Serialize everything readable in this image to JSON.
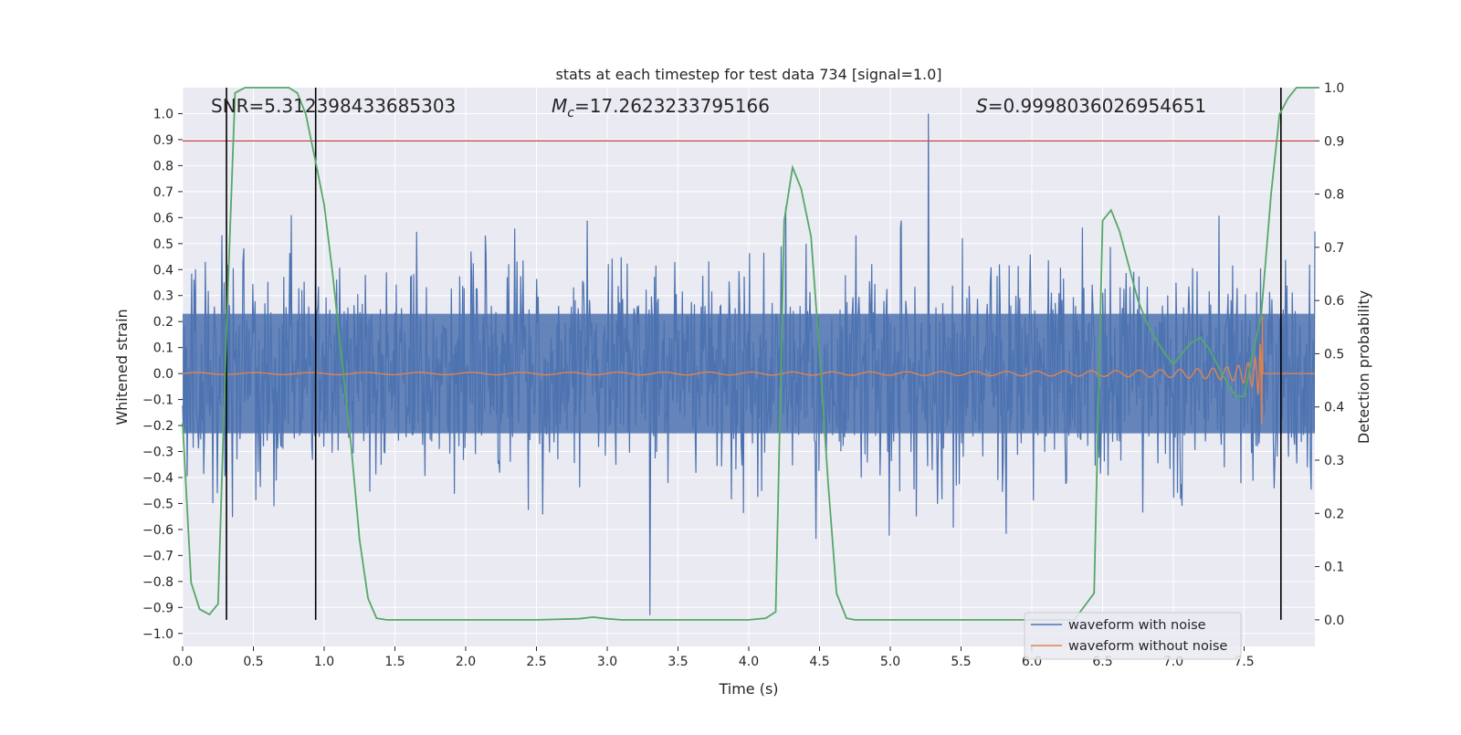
{
  "chart_data": {
    "type": "line",
    "title": "stats at each timestep for test data 734 [signal=1.0]",
    "xlabel": "Time (s)",
    "ylabel": "Whitened strain",
    "y2label": "Detection probability",
    "xlim": [
      0.0,
      8.0
    ],
    "ylim": [
      -1.05,
      1.1
    ],
    "y2lim": [
      -0.05,
      1.0
    ],
    "xticks": [
      0.0,
      0.5,
      1.0,
      1.5,
      2.0,
      2.5,
      3.0,
      3.5,
      4.0,
      4.5,
      5.0,
      5.5,
      6.0,
      6.5,
      7.0,
      7.5
    ],
    "yticks": [
      1.0,
      0.9,
      0.8,
      0.7,
      0.6,
      0.5,
      0.4,
      0.3,
      0.2,
      0.1,
      0.0,
      -0.1,
      -0.2,
      -0.3,
      -0.4,
      -0.5,
      -0.6,
      -0.7,
      -0.8,
      -0.9,
      -1.0
    ],
    "y2ticks": [
      1.0,
      0.9,
      0.8,
      0.7,
      0.6,
      0.5,
      0.4,
      0.3,
      0.2,
      0.1,
      0.0
    ],
    "annotations": {
      "snr": "SNR=5.312398433685303",
      "mc_symbol": "M",
      "mc_sub": "c",
      "mc_value": "=17.2623233795166",
      "s_symbol": "S",
      "s_value": "=0.9998036026954651"
    },
    "threshold": {
      "value": 0.9,
      "axis": "y2",
      "color": "#c44e52"
    },
    "vertical_lines_x": [
      0.31,
      0.94,
      7.76
    ],
    "noise": {
      "min_spike": [
        3.3,
        -0.93
      ],
      "max_spike": [
        5.27,
        1.0
      ],
      "typical_band": 0.38,
      "color": "#4c72b0"
    },
    "chirp": {
      "t_merge": 7.63,
      "max_amp": 0.26,
      "color": "#dd8452"
    },
    "series": [
      {
        "name": "waveform with noise",
        "color": "#4c72b0"
      },
      {
        "name": "waveform without noise",
        "color": "#dd8452"
      },
      {
        "name": "detection probability",
        "color": "#55a868",
        "axis": "y2",
        "x": [
          0.0,
          0.06,
          0.12,
          0.19,
          0.25,
          0.31,
          0.37,
          0.44,
          0.5,
          0.56,
          0.62,
          0.69,
          0.75,
          0.81,
          0.87,
          0.94,
          1.0,
          1.06,
          1.12,
          1.19,
          1.25,
          1.31,
          1.37,
          1.44,
          1.5,
          2.0,
          2.5,
          2.8,
          2.9,
          3.0,
          3.1,
          3.5,
          4.0,
          4.12,
          4.19,
          4.25,
          4.31,
          4.37,
          4.44,
          4.5,
          4.56,
          4.62,
          4.69,
          4.75,
          4.81,
          5.0,
          5.5,
          6.0,
          6.3,
          6.44,
          6.5,
          6.56,
          6.62,
          6.69,
          6.75,
          6.81,
          6.87,
          6.94,
          7.0,
          7.06,
          7.12,
          7.19,
          7.25,
          7.31,
          7.37,
          7.44,
          7.5,
          7.56,
          7.62,
          7.69,
          7.75,
          7.81,
          7.87,
          7.94,
          8.0
        ],
        "values": [
          0.37,
          0.07,
          0.02,
          0.01,
          0.03,
          0.55,
          0.99,
          1.0,
          1.0,
          1.0,
          1.0,
          1.0,
          1.0,
          0.99,
          0.95,
          0.86,
          0.78,
          0.65,
          0.5,
          0.33,
          0.15,
          0.04,
          0.003,
          0.0,
          0.0,
          0.0,
          0.0,
          0.002,
          0.005,
          0.002,
          0.0,
          0.0,
          0.0,
          0.003,
          0.015,
          0.75,
          0.85,
          0.81,
          0.72,
          0.5,
          0.26,
          0.05,
          0.003,
          0.0,
          0.0,
          0.0,
          0.0,
          0.0,
          0.0,
          0.05,
          0.75,
          0.77,
          0.73,
          0.66,
          0.6,
          0.56,
          0.53,
          0.5,
          0.48,
          0.5,
          0.52,
          0.53,
          0.51,
          0.48,
          0.45,
          0.42,
          0.42,
          0.5,
          0.57,
          0.8,
          0.95,
          0.98,
          1.0,
          1.0,
          1.0
        ]
      }
    ],
    "legend": {
      "location": "lower-right",
      "entries": [
        "waveform with noise",
        "waveform without noise"
      ]
    }
  }
}
